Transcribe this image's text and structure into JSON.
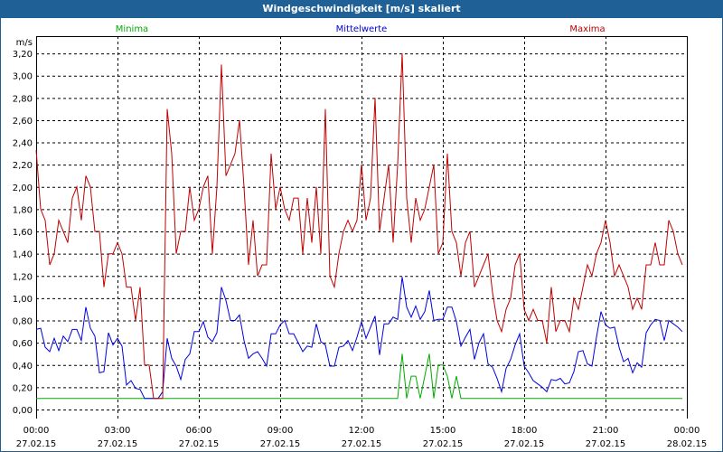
{
  "window": {
    "title": "Windgeschwindigkeit [m/s] skaliert"
  },
  "chart_data": {
    "type": "line",
    "title": "Windgeschwindigkeit [m/s] skaliert",
    "ylabel": "m/s",
    "ylim": [
      0,
      3.2
    ],
    "y_ticks": [
      "0,00",
      "0,20",
      "0,40",
      "0,60",
      "0,80",
      "1,00",
      "1,20",
      "1,40",
      "1,60",
      "1,80",
      "2,00",
      "2,20",
      "2,40",
      "2,60",
      "2,80",
      "3,00",
      "3,20"
    ],
    "x_ticks": [
      {
        "time": "00:00",
        "date": "27.02.15"
      },
      {
        "time": "03:00",
        "date": "27.02.15"
      },
      {
        "time": "06:00",
        "date": "27.02.15"
      },
      {
        "time": "09:00",
        "date": "27.02.15"
      },
      {
        "time": "12:00",
        "date": "27.02.15"
      },
      {
        "time": "15:00",
        "date": "27.02.15"
      },
      {
        "time": "18:00",
        "date": "27.02.15"
      },
      {
        "time": "21:00",
        "date": "27.02.15"
      },
      {
        "time": "00:00",
        "date": "28.02.15"
      }
    ],
    "x_range_minutes": [
      0,
      1440
    ],
    "x_step_minutes": 10,
    "grid": true,
    "series": [
      {
        "name": "Minima",
        "color": "#00aa00",
        "values": [
          0.1,
          0.1,
          0.1,
          0.1,
          0.1,
          0.1,
          0.1,
          0.1,
          0.1,
          0.1,
          0.1,
          0.1,
          0.1,
          0.1,
          0.1,
          0.1,
          0.1,
          0.1,
          0.1,
          0.1,
          0.1,
          0.1,
          0.1,
          0.1,
          0.1,
          0.1,
          0.1,
          0.1,
          0.1,
          0.1,
          0.1,
          0.1,
          0.1,
          0.1,
          0.1,
          0.1,
          0.1,
          0.1,
          0.1,
          0.1,
          0.1,
          0.1,
          0.1,
          0.1,
          0.1,
          0.1,
          0.1,
          0.1,
          0.1,
          0.1,
          0.1,
          0.1,
          0.1,
          0.1,
          0.1,
          0.1,
          0.1,
          0.1,
          0.1,
          0.1,
          0.1,
          0.1,
          0.1,
          0.1,
          0.1,
          0.1,
          0.1,
          0.1,
          0.1,
          0.1,
          0.1,
          0.1,
          0.1,
          0.1,
          0.1,
          0.1,
          0.1,
          0.1,
          0.1,
          0.1,
          0.1,
          0.5,
          0.1,
          0.3,
          0.3,
          0.1,
          0.3,
          0.5,
          0.1,
          0.4,
          0.4,
          0.3,
          0.1,
          0.3,
          0.1,
          0.1,
          0.1,
          0.1,
          0.1,
          0.1,
          0.1,
          0.1,
          0.1,
          0.1,
          0.1,
          0.1,
          0.1,
          0.1,
          0.1,
          0.1,
          0.1,
          0.1,
          0.1,
          0.1,
          0.1,
          0.1,
          0.1,
          0.1,
          0.1,
          0.1,
          0.1,
          0.1,
          0.1,
          0.1,
          0.1,
          0.1,
          0.1,
          0.1,
          0.1,
          0.1,
          0.1,
          0.1,
          0.1,
          0.1,
          0.1,
          0.1,
          0.1,
          0.1,
          0.1,
          0.1,
          0.1,
          0.1,
          0.1,
          0.1
        ]
      },
      {
        "name": "Mittelwerte",
        "color": "#0000e0",
        "values": [
          0.72,
          0.73,
          0.56,
          0.52,
          0.64,
          0.53,
          0.66,
          0.61,
          0.72,
          0.72,
          0.62,
          0.92,
          0.73,
          0.66,
          0.33,
          0.34,
          0.69,
          0.58,
          0.64,
          0.57,
          0.22,
          0.26,
          0.19,
          0.18,
          0.1,
          0.1,
          0.1,
          0.1,
          0.16,
          0.64,
          0.46,
          0.39,
          0.27,
          0.45,
          0.5,
          0.7,
          0.7,
          0.79,
          0.65,
          0.61,
          0.69,
          1.1,
          0.98,
          0.8,
          0.8,
          0.85,
          0.62,
          0.46,
          0.5,
          0.52,
          0.46,
          0.39,
          0.68,
          0.68,
          0.76,
          0.8,
          0.68,
          0.68,
          0.6,
          0.52,
          0.57,
          0.56,
          0.77,
          0.61,
          0.58,
          0.39,
          0.39,
          0.56,
          0.57,
          0.62,
          0.53,
          0.65,
          0.79,
          0.64,
          0.74,
          0.84,
          0.49,
          0.77,
          0.77,
          0.83,
          0.81,
          1.19,
          0.92,
          0.83,
          0.93,
          0.81,
          0.88,
          1.07,
          0.8,
          0.81,
          0.81,
          0.92,
          0.92,
          0.79,
          0.57,
          0.65,
          0.72,
          0.45,
          0.6,
          0.68,
          0.41,
          0.38,
          0.28,
          0.16,
          0.37,
          0.45,
          0.58,
          0.68,
          0.39,
          0.33,
          0.26,
          0.23,
          0.2,
          0.16,
          0.27,
          0.26,
          0.28,
          0.23,
          0.24,
          0.34,
          0.52,
          0.53,
          0.41,
          0.39,
          0.65,
          0.88,
          0.76,
          0.73,
          0.74,
          0.56,
          0.43,
          0.46,
          0.33,
          0.42,
          0.38,
          0.69,
          0.76,
          0.81,
          0.8,
          0.62,
          0.8,
          0.77,
          0.74,
          0.7
        ]
      },
      {
        "name": "Maxima",
        "color": "#c00000",
        "values": [
          2.33,
          1.8,
          1.7,
          1.3,
          1.4,
          1.7,
          1.6,
          1.5,
          1.9,
          2.0,
          1.7,
          2.1,
          2.0,
          1.6,
          1.6,
          1.1,
          1.4,
          1.4,
          1.5,
          1.4,
          1.1,
          1.1,
          0.8,
          1.1,
          0.4,
          0.4,
          0.1,
          0.1,
          0.1,
          2.7,
          2.3,
          1.4,
          1.6,
          1.6,
          2.0,
          1.7,
          1.8,
          2.0,
          2.1,
          1.4,
          2.0,
          3.1,
          2.1,
          2.2,
          2.3,
          2.6,
          2.0,
          1.3,
          1.7,
          1.2,
          1.3,
          1.3,
          2.3,
          1.8,
          2.0,
          1.8,
          1.7,
          1.9,
          1.9,
          1.4,
          1.9,
          1.5,
          2.0,
          1.4,
          2.7,
          1.2,
          1.1,
          1.4,
          1.6,
          1.7,
          1.6,
          1.7,
          2.2,
          1.7,
          1.9,
          2.8,
          1.6,
          1.9,
          2.2,
          1.5,
          2.2,
          3.2,
          1.9,
          1.5,
          1.9,
          1.7,
          1.8,
          2.0,
          2.2,
          1.4,
          1.5,
          2.3,
          1.6,
          1.5,
          1.2,
          1.5,
          1.6,
          1.1,
          1.2,
          1.3,
          1.4,
          1.05,
          0.8,
          0.7,
          0.9,
          1.0,
          1.3,
          1.4,
          0.9,
          0.8,
          0.9,
          0.8,
          0.8,
          0.6,
          1.1,
          0.7,
          0.8,
          0.8,
          0.7,
          1.0,
          0.9,
          1.1,
          1.3,
          1.2,
          1.4,
          1.5,
          1.7,
          1.5,
          1.2,
          1.3,
          1.2,
          1.1,
          0.9,
          1.0,
          0.9,
          1.3,
          1.3,
          1.5,
          1.3,
          1.3,
          1.7,
          1.6,
          1.4,
          1.3
        ]
      }
    ]
  }
}
